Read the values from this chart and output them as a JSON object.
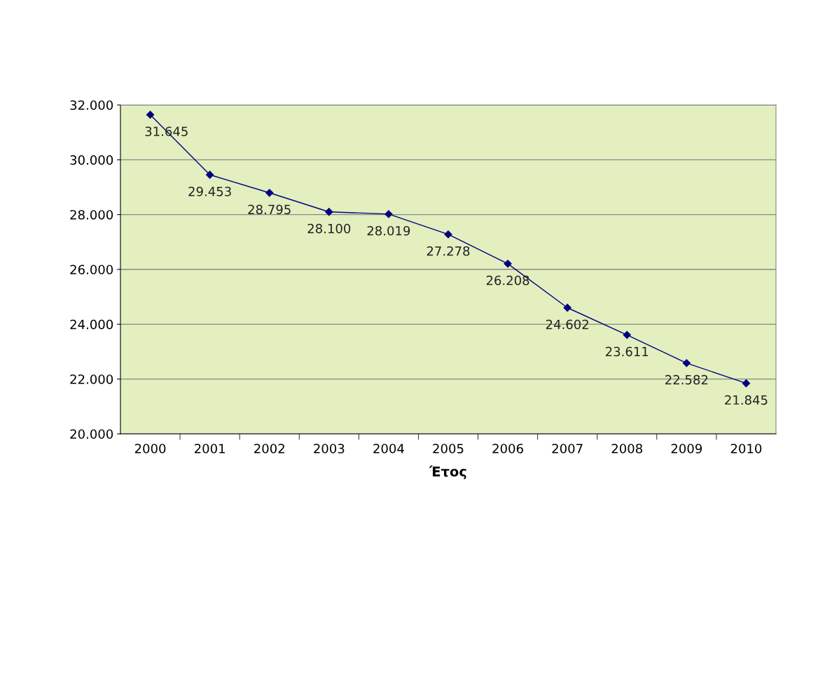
{
  "chart_data": {
    "type": "line",
    "xlabel": "Έτος",
    "categories": [
      "2000",
      "2001",
      "2002",
      "2003",
      "2004",
      "2005",
      "2006",
      "2007",
      "2008",
      "2009",
      "2010"
    ],
    "series": [
      {
        "color": "#000080",
        "values": [
          31645,
          29453,
          28795,
          28100,
          28019,
          27278,
          26208,
          24602,
          23611,
          22582,
          21845
        ],
        "value_labels": [
          "31.645",
          "29.453",
          "28.795",
          "28.100",
          "28.019",
          "27.278",
          "26.208",
          "24.602",
          "23.611",
          "22.582",
          "21.845"
        ]
      }
    ],
    "ylim": [
      20000,
      32000
    ],
    "yticks": [
      {
        "value": 20000,
        "label": "20.000"
      },
      {
        "value": 22000,
        "label": "22.000"
      },
      {
        "value": 24000,
        "label": "24.000"
      },
      {
        "value": 26000,
        "label": "26.000"
      },
      {
        "value": 28000,
        "label": "28.000"
      },
      {
        "value": 30000,
        "label": "30.000"
      },
      {
        "value": 32000,
        "label": "32.000"
      }
    ],
    "grid": "y",
    "marker": "diamond",
    "line_style": "solid"
  }
}
